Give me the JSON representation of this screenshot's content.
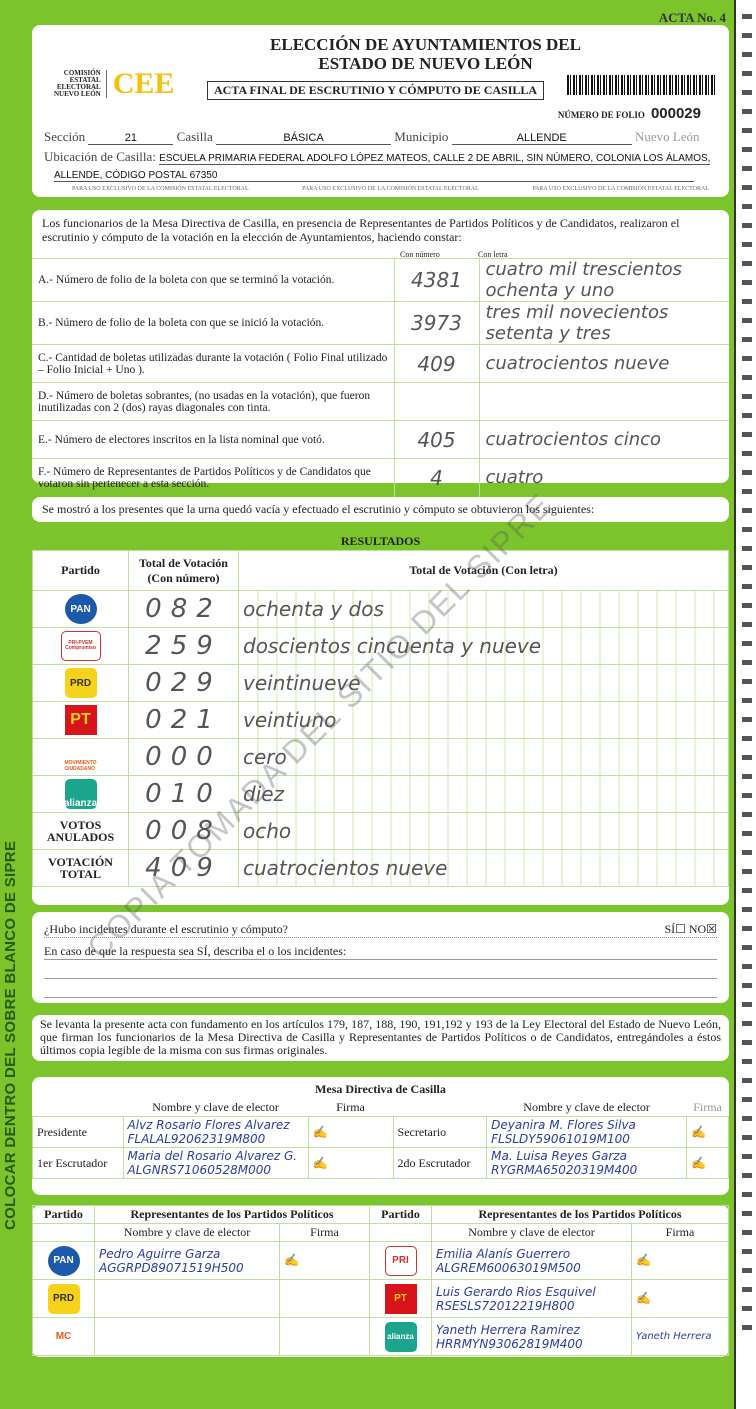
{
  "side_text": "COLOCAR DENTRO DEL SOBRE BLANCO DE SIPRE",
  "watermark": "COPIA TOMADA DEL SITIO DEL SIPRE",
  "header": {
    "acta_no": "ACTA No. 4",
    "title_line1": "ELECCIÓN DE AYUNTAMIENTOS DEL",
    "title_line2": "ESTADO DE NUEVO LEÓN",
    "org": [
      "COMISIÓN",
      "ESTATAL",
      "ELECTORAL",
      "NUEVO LEÓN"
    ],
    "logo": "CEE",
    "subtitle": "ACTA FINAL DE ESCRUTINIO Y CÓMPUTO DE CASILLA",
    "folio_label": "NÚMERO DE FOLIO",
    "folio": "000029",
    "seccion_label": "Sección",
    "seccion": "21",
    "casilla_label": "Casilla",
    "casilla": "BÁSICA",
    "municipio_label": "Municipio",
    "municipio": "ALLENDE",
    "estado": "Nuevo León",
    "ubicacion_label": "Ubicación de Casilla:",
    "ubicacion_1": "ESCUELA  PRIMARIA FEDERAL ADOLFO LÓPEZ MATEOS, CALLE 2 DE ABRIL, SIN NÚMERO, COLONIA LOS ÁLAMOS,",
    "ubicacion_2": "ALLENDE, CÓDIGO POSTAL 67350",
    "exclusive": "PARA USO EXCLUSIVO DE LA COMISIÓN ESTATAL ELECTORAL"
  },
  "intro": "Los funcionarios de la Mesa Directiva de Casilla, en presencia de Representantes de Partidos Políticos  y de Candidatos, realizaron el escrutinio y cómputo de la votación en la elección de Ayuntamientos, haciendo constar:",
  "col_num": "Con número",
  "col_letra": "Con letra",
  "items": [
    {
      "label": "A.- Número de folio de la boleta con que se terminó la votación.",
      "num": "4381",
      "letra": "cuatro mil trescientos ochenta y uno"
    },
    {
      "label": "B.- Número de folio de la boleta con que se inició la votación.",
      "num": "3973",
      "letra": "tres mil novecientos setenta y tres"
    },
    {
      "label": "C.- Cantidad de boletas utilizadas durante la votación ( Folio Final utilizado – Folio Inicial + Uno ).",
      "num": "409",
      "letra": "cuatrocientos nueve"
    },
    {
      "label": "D.- Número de boletas sobrantes, (no usadas en la votación), que fueron inutilizadas con 2 (dos) rayas diagonales con tinta.",
      "num": "",
      "letra": ""
    },
    {
      "label": "E.- Número de electores inscritos en la lista nominal que votó.",
      "num": "405",
      "letra": "cuatrocientos cinco"
    },
    {
      "label": "F.- Número de Representantes de Partidos Políticos y de Candidatos que votaron sin pertenecer a esta sección.",
      "num": "4",
      "letra": "cuatro"
    }
  ],
  "urna_text": "Se mostró a los presentes que la urna quedó vacía y efectuado el escrutinio y cómputo se obtuvieron los siguientes:",
  "resultados": {
    "title": "RESULTADOS",
    "h_partido": "Partido",
    "h_num": "Total de Votación (Con número)",
    "h_letra": "Total de Votación (Con letra)",
    "rows": [
      {
        "party": "PAN",
        "color": "#1a5aa8",
        "num": "082",
        "letra": "ochenta y dos"
      },
      {
        "party": "PRI-PVEM Compromiso",
        "color": "#ffffff",
        "num": "259",
        "letra": "doscientos cincuenta y nueve"
      },
      {
        "party": "PRD",
        "color": "#f6d31a",
        "num": "029",
        "letra": "veintinueve"
      },
      {
        "party": "PT",
        "color": "#d7141a",
        "num": "021",
        "letra": "veintiuno"
      },
      {
        "party": "MOVIMIENTO CIUDADANO",
        "color": "#e85a1a",
        "num": "000",
        "letra": "cero"
      },
      {
        "party": "alianza",
        "color": "#1aa58c",
        "num": "010",
        "letra": "diez"
      },
      {
        "party": "VOTOS ANULADOS",
        "color": "",
        "num": "008",
        "letra": "ocho"
      },
      {
        "party": "VOTACIÓN TOTAL",
        "color": "",
        "num": "409",
        "letra": "cuatrocientos nueve"
      }
    ]
  },
  "incidentes": {
    "question": "¿Hubo incidentes durante el escrutinio y cómputo?",
    "si": "SÍ",
    "no": "NO",
    "answer": "NO",
    "describe": "En caso de que la respuesta sea SÍ, describa el o los incidentes:"
  },
  "legal": "Se levanta la presente acta con fundamento en los artículos 179, 187, 188, 190, 191,192 y 193 de la Ley Electoral del Estado de Nuevo León, que firman los funcionarios de la Mesa Directiva de Casilla y Representantes de Partidos Políticos o de Candidatos, entregándoles a éstos últimos copia legible de la misma con sus firmas originales.",
  "mesa": {
    "title": "Mesa Directiva de Casilla",
    "h_nombre": "Nombre y clave de elector",
    "h_firma": "Firma",
    "presidente": {
      "role": "Presidente",
      "name": "Alvz Rosario Flores Alvarez",
      "clave": "FLALAL92062319M800"
    },
    "secretario": {
      "role": "Secretario",
      "name": "Deyanira M. Flores Silva",
      "clave": "FLSLDY59061019M100"
    },
    "escrutador1": {
      "role": "1er Escrutador",
      "name": "Maria del Rosario Alvarez G.",
      "clave": "ALGNRS71060528M000"
    },
    "escrutador2": {
      "role": "2do Escrutador",
      "name": "Ma. Luisa Reyes Garza",
      "clave": "RYGRMA65020319M400"
    }
  },
  "reps": {
    "h_partido": "Partido",
    "h_title": "Representantes de los Partidos Políticos",
    "h_nombre": "Nombre y clave de elector",
    "h_firma": "Firma",
    "left": [
      {
        "party": "PAN",
        "color": "#1a5aa8",
        "name": "Pedro Aguirre Garza",
        "clave": "AGGRPD89071519H500"
      },
      {
        "party": "PRD",
        "color": "#f6d31a",
        "name": "",
        "clave": ""
      },
      {
        "party": "MC",
        "color": "#e85a1a",
        "name": "",
        "clave": ""
      }
    ],
    "right": [
      {
        "party": "PRI",
        "color": "#ffffff",
        "name": "Emilia Alanís Guerrero",
        "clave": "ALGREM60063019M500"
      },
      {
        "party": "PT",
        "color": "#d7141a",
        "name": "Luis Gerardo Rios Esquivel",
        "clave": "RSESLS72012219H800"
      },
      {
        "party": "alianza",
        "color": "#1aa58c",
        "name": "Yaneth Herrera Ramirez",
        "clave": "HRRMYN93062819M400",
        "firma": "Yaneth Herrera"
      }
    ]
  }
}
